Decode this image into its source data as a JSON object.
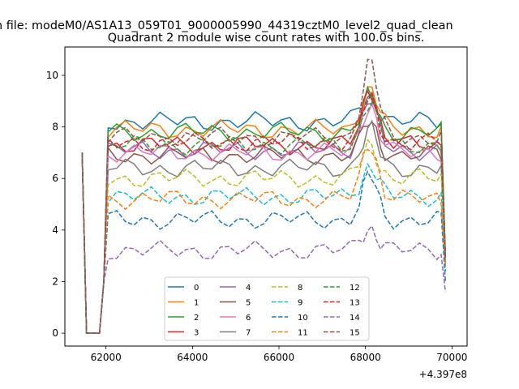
{
  "chart_data": {
    "type": "line",
    "suptitle": "n file: modeM0/AS1A13_059T01_9000005990_44319cztM0_level2_quad_clean",
    "title": "Quadrant 2 module wise count rates with 100.0s bins.",
    "xlabel": "",
    "ylabel": "",
    "offset_text": "+4.397e8",
    "x_offset": 439700000,
    "xlim": [
      61050,
      70350
    ],
    "ylim": [
      -0.5,
      11.1
    ],
    "x_ticks": [
      62000,
      64000,
      66000,
      68000,
      70000
    ],
    "y_ticks": [
      0,
      2,
      4,
      6,
      8,
      10
    ],
    "grid": false,
    "legend": {
      "placement": "lower center",
      "ncol": 4
    },
    "shape_x": [
      61450,
      61550,
      61650,
      61750,
      61850,
      61950,
      62050,
      62250,
      62450,
      62650,
      62850,
      63050,
      63250,
      63450,
      63650,
      63850,
      64050,
      64250,
      64450,
      64650,
      64850,
      65050,
      65250,
      65450,
      65650,
      65850,
      66050,
      66250,
      66450,
      66650,
      66850,
      67050,
      67250,
      67450,
      67650,
      67850,
      67950,
      68050,
      68150,
      68250,
      68350,
      68450,
      68650,
      68850,
      69050,
      69250,
      69450,
      69650,
      69750,
      69850
    ],
    "series": [
      {
        "name": "0",
        "color": "#1f77b4",
        "dash": "solid",
        "base": 8.2,
        "peak": 9.2,
        "final": 3.0
      },
      {
        "name": "1",
        "color": "#ff7f0e",
        "dash": "solid",
        "base": 7.9,
        "peak": 9.5,
        "final": 2.9
      },
      {
        "name": "2",
        "color": "#2ca02c",
        "dash": "solid",
        "base": 7.8,
        "peak": 9.2,
        "final": 2.9
      },
      {
        "name": "3",
        "color": "#d62728",
        "dash": "solid",
        "base": 7.3,
        "peak": 9.5,
        "final": 2.8
      },
      {
        "name": "4",
        "color": "#9467bd",
        "dash": "solid",
        "base": 7.1,
        "peak": 9.1,
        "final": 2.7
      },
      {
        "name": "5",
        "color": "#8c564b",
        "dash": "solid",
        "base": 6.9,
        "peak": 8.2,
        "final": 2.7
      },
      {
        "name": "6",
        "color": "#e377c2",
        "dash": "solid",
        "base": 7.0,
        "peak": 8.9,
        "final": 2.8
      },
      {
        "name": "7",
        "color": "#7f7f7f",
        "dash": "solid",
        "base": 6.4,
        "peak": 7.9,
        "final": 2.7
      },
      {
        "name": "8",
        "color": "#bcbd22",
        "dash": "dashed",
        "base": 6.0,
        "peak": 7.3,
        "final": 2.6
      },
      {
        "name": "9",
        "color": "#17becf",
        "dash": "dashed",
        "base": 5.3,
        "peak": 6.5,
        "final": 2.4
      },
      {
        "name": "10",
        "color": "#1f77b4",
        "dash": "dashed",
        "base": 4.4,
        "peak": 6.1,
        "final": 2.0
      },
      {
        "name": "11",
        "color": "#ff7f0e",
        "dash": "dashed",
        "base": 5.2,
        "peak": 7.4,
        "final": 2.6
      },
      {
        "name": "12",
        "color": "#2ca02c",
        "dash": "dashed",
        "base": 7.3,
        "peak": 9.0,
        "final": 2.9
      },
      {
        "name": "13",
        "color": "#d62728",
        "dash": "dashed",
        "base": 7.4,
        "peak": 9.1,
        "final": 2.9
      },
      {
        "name": "14",
        "color": "#9467bd",
        "dash": "dashed",
        "base": 3.2,
        "peak": 4.1,
        "final": 1.6
      },
      {
        "name": "15",
        "color": "#8c564b",
        "dash": "dashed",
        "base": 7.6,
        "peak": 10.5,
        "final": 2.9
      }
    ]
  }
}
